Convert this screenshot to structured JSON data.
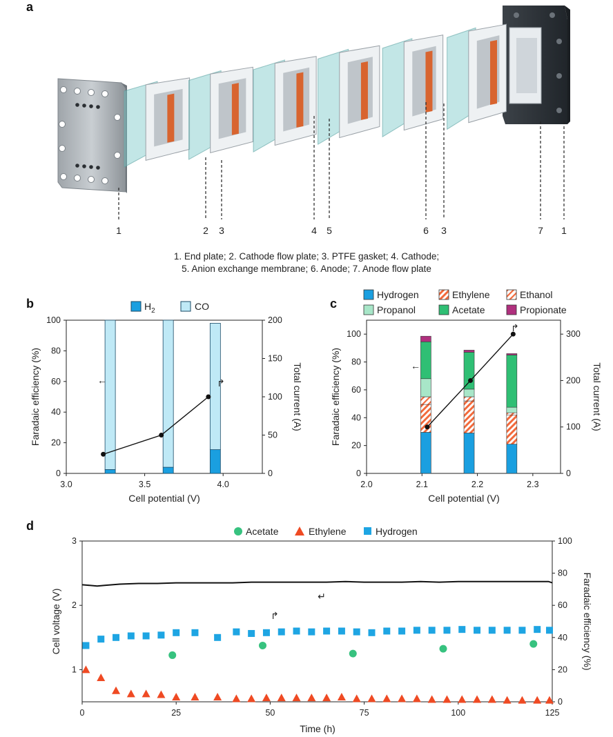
{
  "panel_a": {
    "letter": "a",
    "part_numbers": [
      "1",
      "2",
      "3",
      "4",
      "5",
      "6",
      "3",
      "7",
      "1"
    ],
    "caption_line1": "1. End plate; 2. Cathode flow plate; 3. PTFE gasket; 4. Cathode;",
    "caption_line2": "5. Anion exchange membrane; 6. Anode; 7. Anode flow plate"
  },
  "colors": {
    "hydrogen": "#1a9fe0",
    "co": "#bfe9f6",
    "ethylene": "#f26a3c",
    "ethanol": "#f26a3c",
    "propanol": "#a8e6c8",
    "acetate": "#2fbf74",
    "propionate": "#b0307e",
    "line": "#111111",
    "acetate_dot": "#37c27f",
    "ethylene_tri": "#ef4a23",
    "hydrogen_sq": "#1ea5e3"
  },
  "chart_data": [
    {
      "panel": "b",
      "type": "bar",
      "xlabel": "Cell potential (V)",
      "ylabel": "Faradaic efficiency (%)",
      "y2label": "Total current (A)",
      "xlim": [
        3.0,
        4.25
      ],
      "ylim": [
        0,
        100
      ],
      "y2lim": [
        0,
        200
      ],
      "xticks": [
        "3.0",
        "3.5",
        "4.0"
      ],
      "yticks": [
        "0",
        "20",
        "40",
        "60",
        "80",
        "100"
      ],
      "y2ticks": [
        "0",
        "50",
        "100",
        "150",
        "200"
      ],
      "legend": [
        "H2",
        "CO"
      ],
      "legend_h2_main": "H",
      "legend_h2_sub": "2",
      "legend_co": "CO",
      "x": [
        3.28,
        3.65,
        3.95
      ],
      "series": [
        {
          "name": "H2",
          "values": [
            2.5,
            4,
            15.5
          ]
        },
        {
          "name": "CO",
          "values": [
            97.5,
            96,
            82.5
          ]
        }
      ],
      "current": [
        25,
        50,
        100
      ],
      "arrow_left": "←",
      "arrow_right": "↱"
    },
    {
      "panel": "c",
      "type": "bar",
      "xlabel": "Cell potential (V)",
      "ylabel": "Faradaic efficiency (%)",
      "y2label": "Total current (A)",
      "xlim": [
        2.0,
        2.35
      ],
      "ylim": [
        0,
        110
      ],
      "y2lim": [
        0,
        330
      ],
      "xticks": [
        "2.0",
        "2.1",
        "2.2",
        "2.3"
      ],
      "yticks": [
        "0",
        "20",
        "40",
        "60",
        "80",
        "100"
      ],
      "y2ticks": [
        "0",
        "100",
        "200",
        "300"
      ],
      "legend": [
        "Hydrogen",
        "Ethylene",
        "Ethanol",
        "Propanol",
        "Acetate",
        "Propionate"
      ],
      "x": [
        2.107,
        2.185,
        2.262
      ],
      "series": [
        {
          "name": "Hydrogen",
          "values": [
            29.5,
            29,
            21
          ]
        },
        {
          "name": "Ethylene",
          "values": [
            20,
            23,
            21
          ]
        },
        {
          "name": "Ethanol",
          "values": [
            5.5,
            3,
            1.5
          ]
        },
        {
          "name": "Propanol",
          "values": [
            13,
            5.5,
            4
          ]
        },
        {
          "name": "Acetate",
          "values": [
            26.5,
            26.5,
            37.5
          ]
        },
        {
          "name": "Propionate",
          "values": [
            4,
            1.5,
            1
          ]
        }
      ],
      "current": [
        100,
        200,
        300
      ],
      "arrow_left": "←",
      "arrow_right": "↱"
    },
    {
      "panel": "d",
      "type": "scatter",
      "xlabel": "Time (h)",
      "ylabel": "Cell voltage (V)",
      "y2label": "Faradaic efficiency (%)",
      "xlim": [
        0,
        125
      ],
      "ylim": [
        0.5,
        3
      ],
      "y2lim": [
        0,
        100
      ],
      "xticks": [
        "0",
        "25",
        "50",
        "75",
        "100",
        "125"
      ],
      "yticks": [
        "1",
        "2",
        "3"
      ],
      "y2ticks": [
        "0",
        "20",
        "40",
        "60",
        "80",
        "100"
      ],
      "legend": [
        "Acetate",
        "Ethylene",
        "Hydrogen"
      ],
      "voltage": {
        "x": [
          0,
          2,
          4,
          6,
          10,
          15,
          20,
          25,
          30,
          35,
          40,
          45,
          50,
          55,
          60,
          65,
          70,
          75,
          80,
          85,
          90,
          95,
          100,
          105,
          110,
          115,
          120,
          124,
          125
        ],
        "y": [
          2.32,
          2.31,
          2.3,
          2.31,
          2.33,
          2.34,
          2.34,
          2.35,
          2.35,
          2.35,
          2.35,
          2.36,
          2.36,
          2.36,
          2.36,
          2.36,
          2.37,
          2.36,
          2.36,
          2.36,
          2.37,
          2.36,
          2.37,
          2.37,
          2.37,
          2.37,
          2.37,
          2.37,
          2.35
        ]
      },
      "acetate": {
        "x": [
          24,
          48,
          72,
          96,
          120
        ],
        "y": [
          29,
          35,
          30,
          33,
          36
        ]
      },
      "ethylene": {
        "x": [
          1,
          5,
          9,
          13,
          17,
          21,
          25,
          30,
          36,
          41,
          45,
          49,
          53,
          57,
          61,
          65,
          69,
          73,
          77,
          81,
          85,
          89,
          93,
          97,
          101,
          105,
          109,
          113,
          117,
          121,
          125
        ],
        "y": [
          20,
          15,
          7,
          5,
          5,
          4.5,
          3,
          3,
          3,
          2,
          2,
          2.5,
          2.5,
          2.5,
          2.5,
          2.5,
          3,
          2,
          2,
          2,
          2,
          2,
          1.5,
          1.5,
          1.5,
          1.5,
          1.5,
          1,
          1,
          1,
          1
        ]
      },
      "hydrogen": {
        "x": [
          1,
          5,
          9,
          13,
          17,
          21,
          25,
          30,
          36,
          41,
          45,
          49,
          53,
          57,
          61,
          65,
          69,
          73,
          77,
          81,
          85,
          89,
          93,
          97,
          101,
          105,
          109,
          113,
          117,
          121,
          125
        ],
        "y": [
          35,
          39,
          40,
          41,
          41,
          41.5,
          43,
          43,
          40,
          43.5,
          42.5,
          43,
          43.5,
          44,
          43.5,
          44,
          44,
          43.5,
          43,
          44,
          44,
          44.5,
          44.5,
          44.5,
          45,
          44.5,
          44.5,
          44.5,
          44.5,
          45,
          44.5
        ]
      },
      "arrow_left": "↵",
      "arrow_right": "↱"
    }
  ]
}
